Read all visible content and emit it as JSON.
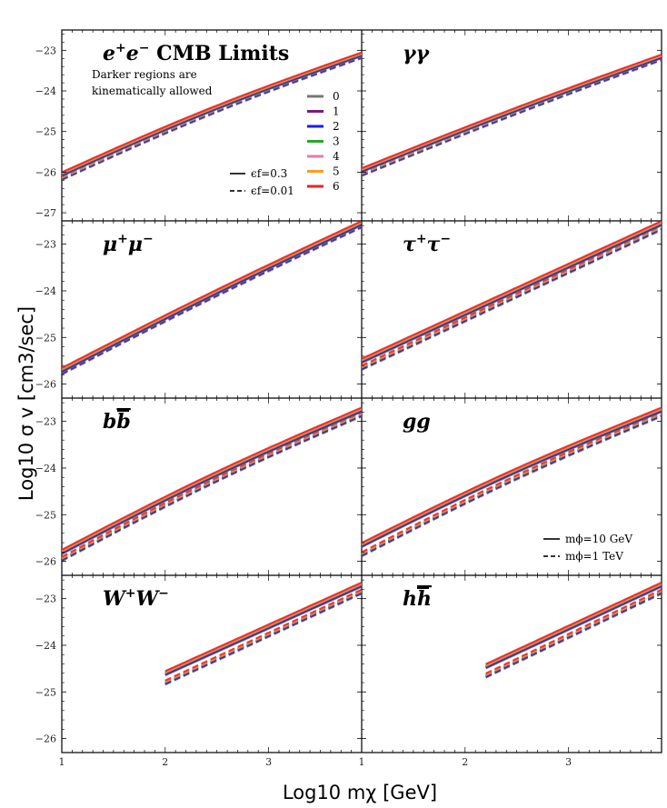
{
  "chart_data": {
    "type": "line",
    "xlabel": "Log10 mχ [GeV]",
    "ylabel": "Log10 σ v [cm3/sec]",
    "xlim": [
      1,
      3.9
    ],
    "ylim": [
      -26.3,
      -22.5
    ],
    "ylim_top_panel": [
      -27.2,
      -22.5
    ],
    "xticks": [
      "1",
      "2",
      "3"
    ],
    "yticks_top_panel": [
      "−23",
      "−24",
      "−25",
      "−26",
      "−27"
    ],
    "yticks": [
      "−23",
      "−24",
      "−25",
      "−26"
    ],
    "colors": [
      "#777777",
      "#7a1a7a",
      "#1a1aee",
      "#22aa22",
      "#ee77aa",
      "#ff9922",
      "#ee2222"
    ],
    "legend_mass": {
      "labels": [
        "0",
        "1",
        "2",
        "3",
        "4",
        "5",
        "6"
      ]
    },
    "legend_eps": {
      "solid": "ϵf=0.3",
      "dashed": "ϵf=0.01"
    },
    "legend_mphi": {
      "solid": "mϕ=10 GeV",
      "dashed": "mϕ=1 TeV"
    },
    "panels": [
      {
        "name": "e+e-",
        "title_main": "e",
        "title_sup1": "+",
        "title_main2": "e",
        "title_sup2": "−",
        "title_rest": " CMB Limits",
        "note1": "Darker regions are",
        "note2": "kinematically allowed",
        "x": [
          1.0,
          3.9
        ],
        "y_solid": [
          -26.05,
          -23.1
        ],
        "y_dashed": [
          -26.15,
          -23.15
        ],
        "bulge": 0.12
      },
      {
        "name": "γγ",
        "title": "γγ",
        "x": [
          1.0,
          3.9
        ],
        "y_solid": [
          -25.95,
          -23.15
        ],
        "y_dashed": [
          -26.05,
          -23.2
        ],
        "bulge": 0.05
      },
      {
        "name": "μ+μ-",
        "title_main": "μ",
        "title_sup1": "+",
        "title_main2": "μ",
        "title_sup2": "−",
        "x": [
          1.0,
          3.9
        ],
        "y_solid": [
          -25.7,
          -22.55
        ],
        "y_dashed": [
          -25.75,
          -22.6
        ],
        "bulge": 0.05
      },
      {
        "name": "τ+τ-",
        "title_main": "τ",
        "title_sup1": "+",
        "title_main2": "τ",
        "title_sup2": "−",
        "x": [
          1.0,
          3.9
        ],
        "y_solid": [
          -25.5,
          -22.55
        ],
        "y_dashed": [
          -25.65,
          -22.65
        ],
        "bulge": 0.0
      },
      {
        "name": "bb",
        "title_main": "b",
        "title_bar": "b",
        "x": [
          1.0,
          3.9
        ],
        "y_solid": [
          -25.8,
          -22.75
        ],
        "y_dashed": [
          -25.95,
          -22.85
        ],
        "bulge": 0.1
      },
      {
        "name": "gg",
        "title": "gg",
        "x": [
          1.0,
          3.9
        ],
        "y_solid": [
          -25.65,
          -22.75
        ],
        "y_dashed": [
          -25.85,
          -22.85
        ],
        "bulge": 0.1
      },
      {
        "name": "W+W-",
        "title_main": "W",
        "title_sup1": "+",
        "title_main2": "W",
        "title_sup2": "−",
        "x": [
          2.0,
          3.9
        ],
        "y_solid": [
          -24.6,
          -22.7
        ],
        "y_dashed": [
          -24.8,
          -22.85
        ],
        "bulge": 0.0
      },
      {
        "name": "hh",
        "title_main": "h",
        "title_bar": "h",
        "x": [
          2.2,
          3.9
        ],
        "y_solid": [
          -24.45,
          -22.7
        ],
        "y_dashed": [
          -24.65,
          -22.85
        ],
        "bulge": 0.0
      }
    ]
  }
}
